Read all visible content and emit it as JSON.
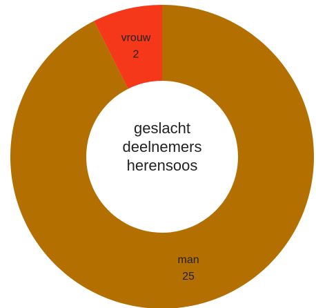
{
  "chart_data": {
    "type": "donut",
    "title": "geslacht deelnemers herensoos",
    "categories": [
      "man",
      "vrouw"
    ],
    "values": [
      25,
      2
    ],
    "colors": [
      "#b36f00",
      "#f5381a"
    ]
  }
}
